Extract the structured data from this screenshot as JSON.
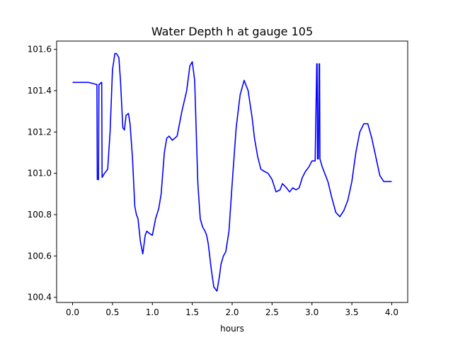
{
  "chart_data": {
    "type": "line",
    "title": "Water Depth h at gauge 105",
    "xlabel": "hours",
    "ylabel": "",
    "xlim": [
      -0.2,
      4.2
    ],
    "ylim": [
      100.375,
      101.64
    ],
    "xticks": [
      0.0,
      0.5,
      1.0,
      1.5,
      2.0,
      2.5,
      3.0,
      3.5,
      4.0
    ],
    "xtick_labels": [
      "0.0",
      "0.5",
      "1.0",
      "1.5",
      "2.0",
      "2.5",
      "3.0",
      "3.5",
      "4.0"
    ],
    "yticks": [
      100.4,
      100.6,
      100.8,
      101.0,
      101.2,
      101.4,
      101.6
    ],
    "ytick_labels": [
      "100.4",
      "100.6",
      "100.8",
      "101.0",
      "101.2",
      "101.4",
      "101.6"
    ],
    "grid": false,
    "legend": "none",
    "series": [
      {
        "color": "#0000ff",
        "x": [
          0.0,
          0.1,
          0.2,
          0.3,
          0.305,
          0.31,
          0.325,
          0.33,
          0.335,
          0.36,
          0.365,
          0.37,
          0.4,
          0.44,
          0.47,
          0.5,
          0.53,
          0.55,
          0.58,
          0.6,
          0.63,
          0.65,
          0.67,
          0.7,
          0.72,
          0.75,
          0.78,
          0.8,
          0.82,
          0.85,
          0.88,
          0.91,
          0.93,
          0.96,
          1.0,
          1.04,
          1.08,
          1.11,
          1.15,
          1.18,
          1.21,
          1.25,
          1.28,
          1.31,
          1.34,
          1.37,
          1.4,
          1.43,
          1.47,
          1.5,
          1.53,
          1.55,
          1.57,
          1.6,
          1.63,
          1.66,
          1.68,
          1.7,
          1.74,
          1.77,
          1.81,
          1.84,
          1.86,
          1.89,
          1.92,
          1.96,
          2.0,
          2.05,
          2.1,
          2.15,
          2.2,
          2.25,
          2.28,
          2.32,
          2.36,
          2.4,
          2.45,
          2.5,
          2.55,
          2.6,
          2.63,
          2.68,
          2.72,
          2.76,
          2.8,
          2.84,
          2.88,
          2.92,
          2.96,
          3.0,
          3.04,
          3.06,
          3.065,
          3.07,
          3.08,
          3.09,
          3.095,
          3.1,
          3.13,
          3.16,
          3.2,
          3.25,
          3.3,
          3.35,
          3.4,
          3.45,
          3.5,
          3.55,
          3.6,
          3.65,
          3.7,
          3.75,
          3.8,
          3.85,
          3.9,
          3.95,
          3.98,
          4.0
        ],
        "y": [
          101.44,
          101.44,
          101.44,
          101.43,
          101.43,
          100.97,
          100.97,
          101.43,
          101.43,
          101.44,
          101.44,
          100.98,
          101.0,
          101.02,
          101.2,
          101.5,
          101.58,
          101.58,
          101.56,
          101.45,
          101.22,
          101.21,
          101.28,
          101.29,
          101.24,
          101.08,
          100.84,
          100.8,
          100.78,
          100.67,
          100.61,
          100.7,
          100.72,
          100.71,
          100.7,
          100.78,
          100.83,
          100.9,
          101.1,
          101.17,
          101.18,
          101.16,
          101.17,
          101.18,
          101.24,
          101.3,
          101.35,
          101.4,
          101.52,
          101.54,
          101.45,
          101.2,
          100.95,
          100.78,
          100.74,
          100.72,
          100.7,
          100.66,
          100.53,
          100.45,
          100.43,
          100.5,
          100.56,
          100.6,
          100.62,
          100.72,
          100.95,
          101.22,
          101.38,
          101.45,
          101.4,
          101.27,
          101.17,
          101.08,
          101.02,
          101.01,
          101.0,
          100.97,
          100.91,
          100.92,
          100.95,
          100.93,
          100.91,
          100.93,
          100.92,
          100.93,
          100.98,
          101.01,
          101.03,
          101.06,
          101.06,
          101.53,
          101.53,
          101.07,
          101.07,
          101.53,
          101.53,
          101.07,
          101.03,
          101.0,
          100.96,
          100.88,
          100.81,
          100.79,
          100.82,
          100.87,
          100.96,
          101.1,
          101.2,
          101.24,
          101.24,
          101.17,
          101.08,
          100.99,
          100.96,
          100.96,
          100.96,
          100.96
        ]
      }
    ]
  }
}
